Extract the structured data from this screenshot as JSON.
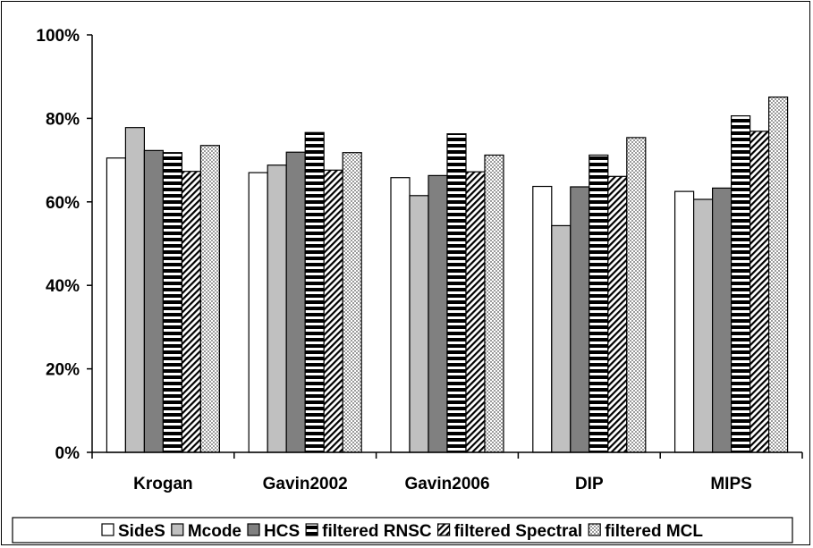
{
  "chart_data": {
    "type": "bar",
    "title": "",
    "xlabel": "",
    "ylabel": "",
    "ylim": [
      0,
      100
    ],
    "yticks": [
      "0%",
      "20%",
      "40%",
      "60%",
      "80%",
      "100%"
    ],
    "categories": [
      "Krogan",
      "Gavin2002",
      "Gavin2006",
      "DIP",
      "MIPS"
    ],
    "series": [
      {
        "name": "SideS",
        "values": [
          70.5,
          67,
          65.8,
          63.7,
          62.5
        ],
        "pattern": "white"
      },
      {
        "name": "Mcode",
        "values": [
          77.8,
          68.8,
          61.5,
          54.3,
          60.6
        ],
        "pattern": "lightgray"
      },
      {
        "name": "HCS",
        "values": [
          72.3,
          71.9,
          66.3,
          63.6,
          63.3
        ],
        "pattern": "darkgray"
      },
      {
        "name": "filtered RNSC",
        "values": [
          71.8,
          76.6,
          76.3,
          71.2,
          80.6
        ],
        "pattern": "hstripes"
      },
      {
        "name": "filtered Spectral",
        "values": [
          67.3,
          67.6,
          67.2,
          66.1,
          76.9
        ],
        "pattern": "diagonal"
      },
      {
        "name": "filtered MCL",
        "values": [
          73.5,
          71.8,
          71.2,
          75.4,
          85.1
        ],
        "pattern": "dots"
      }
    ],
    "legend_position": "bottom",
    "grid": false
  },
  "colors": {
    "white": "#ffffff",
    "lightgray": "#c0c0c0",
    "darkgray": "#808080",
    "stroke": "#000000"
  }
}
